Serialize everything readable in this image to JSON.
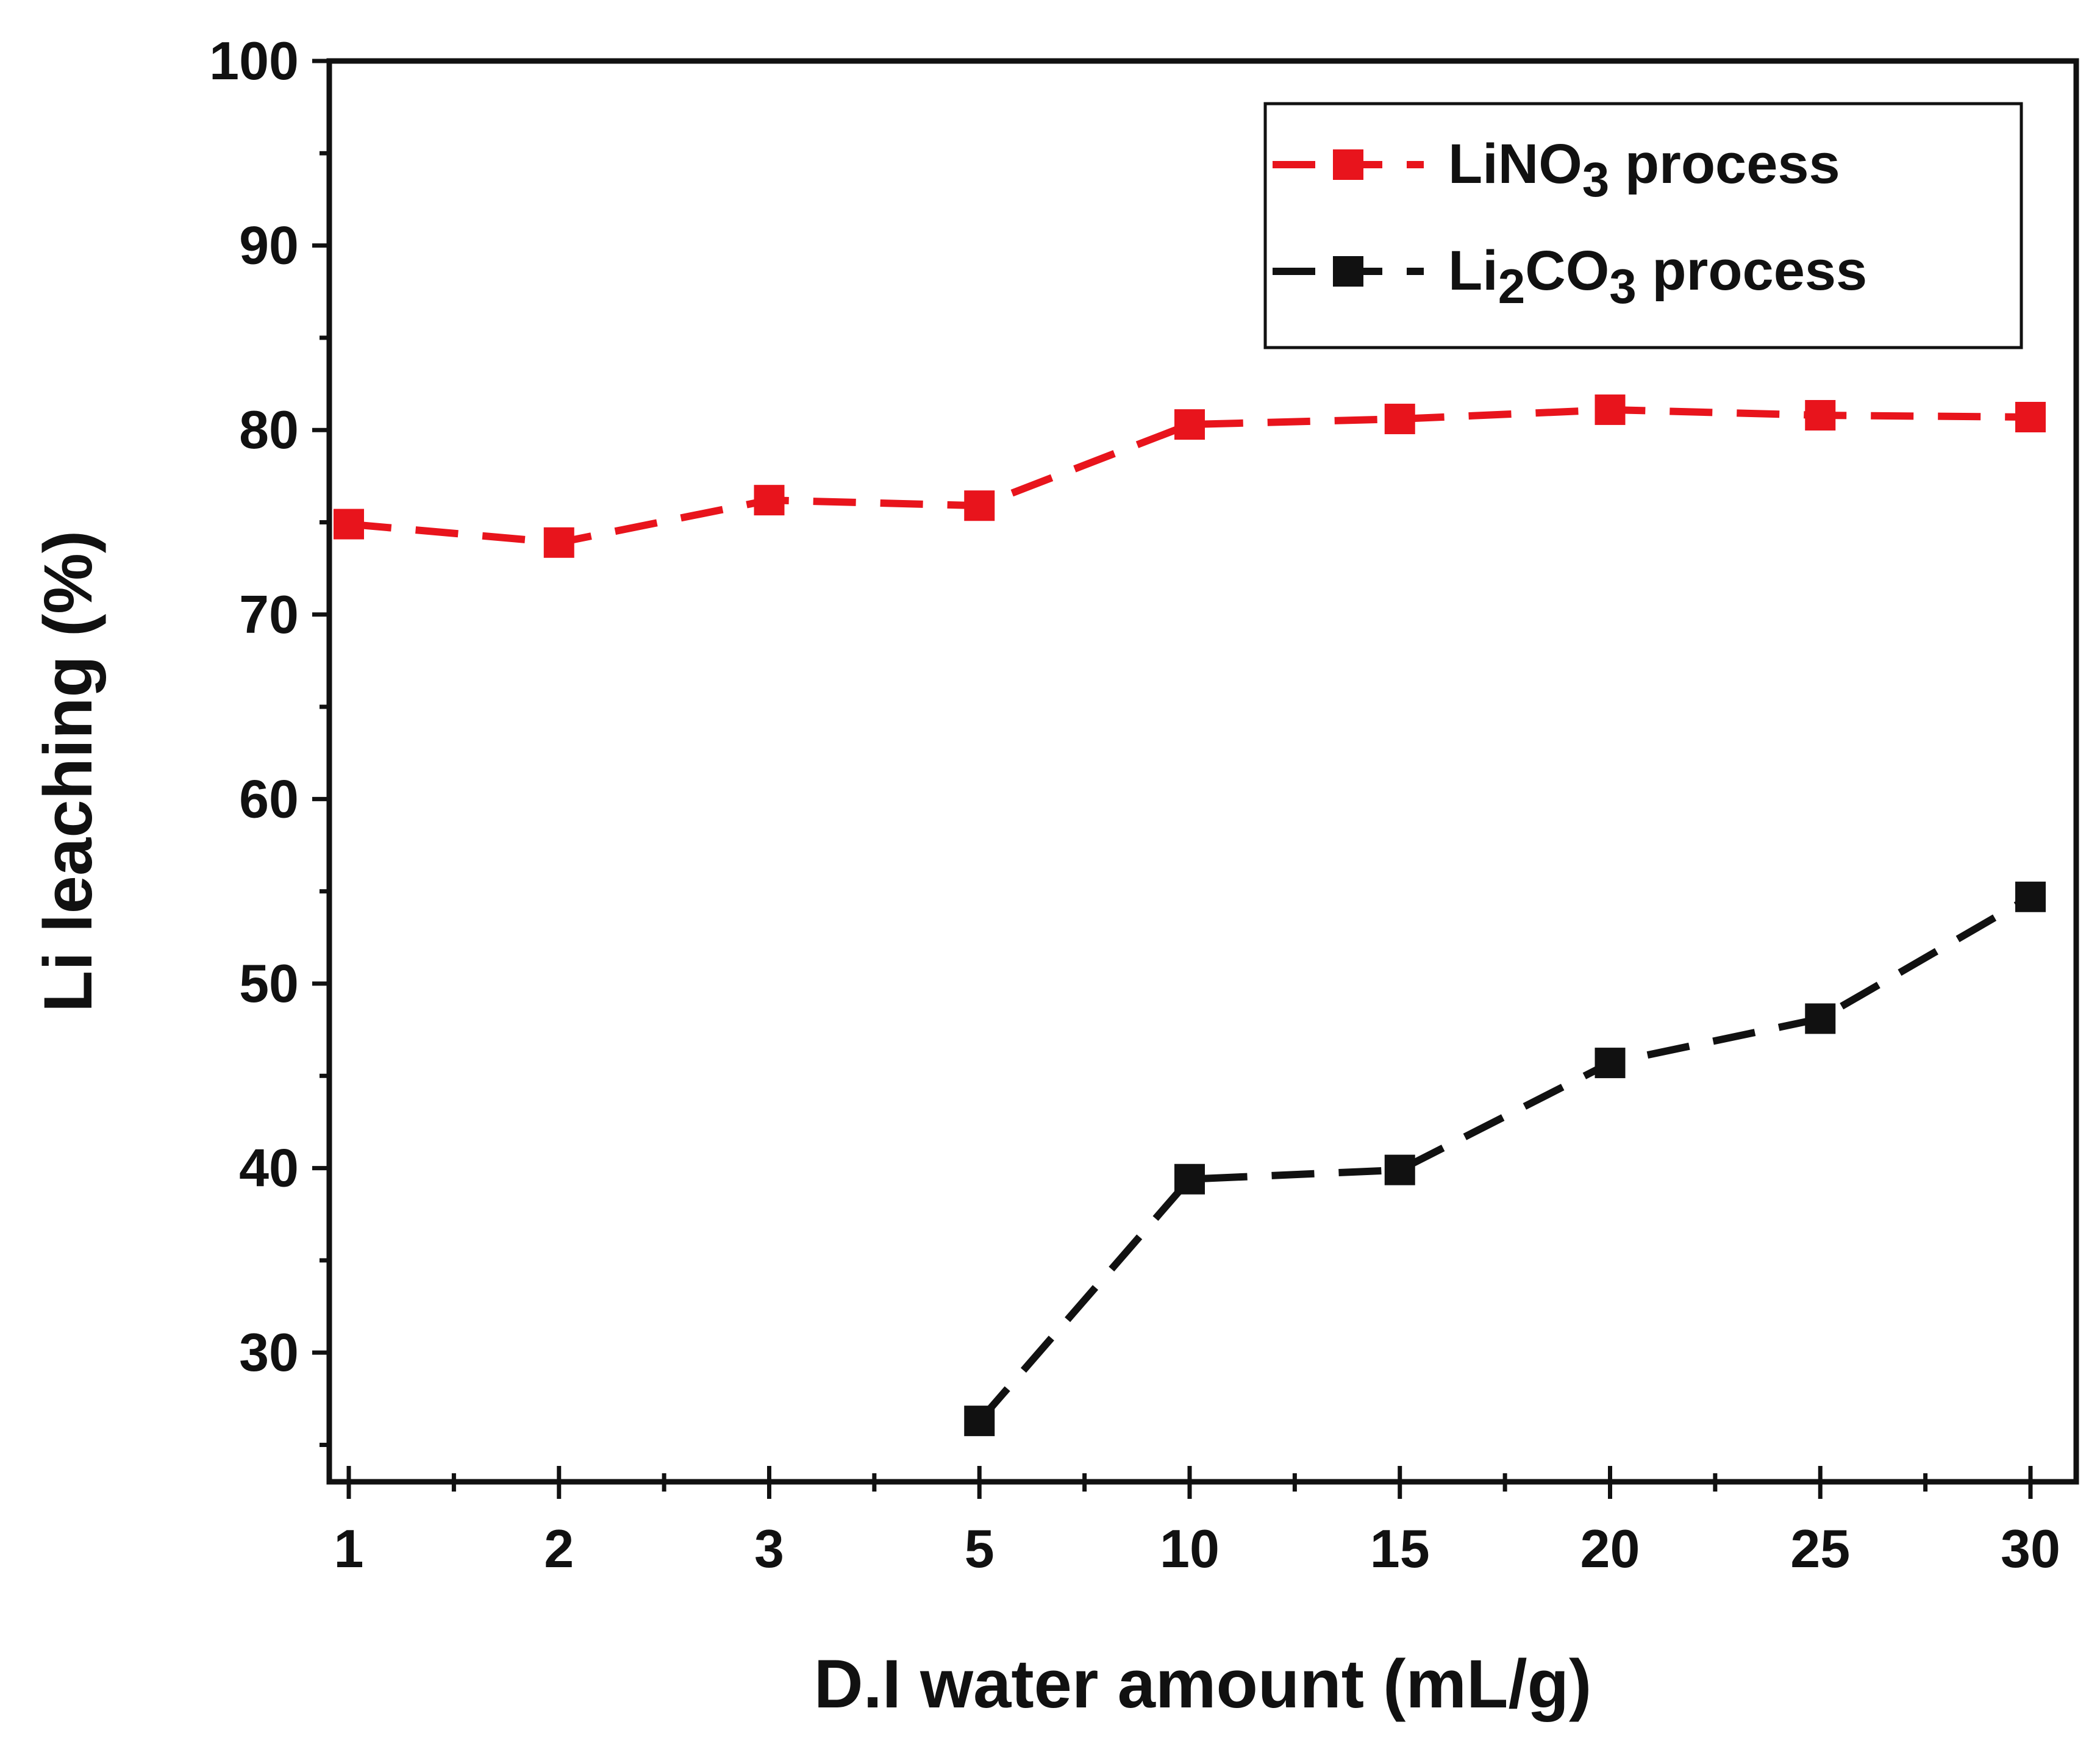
{
  "chart_data": {
    "type": "line",
    "xlabel": "D.I water amount (mL/g)",
    "ylabel": "Li leaching (%)",
    "categories": [
      "1",
      "2",
      "3",
      "5",
      "10",
      "15",
      "20",
      "25",
      "30"
    ],
    "ylim": [
      23,
      100
    ],
    "yticks": [
      30,
      40,
      50,
      60,
      70,
      80,
      90,
      100
    ],
    "grid": false,
    "legend_position": "top-right",
    "series": [
      {
        "name": "LiNO₃ process",
        "legend_base": "LiNO",
        "legend_sub": "3",
        "legend_suffix": " process",
        "color": "#e8141c",
        "marker": "square",
        "line_style": "dashed",
        "values": [
          74.9,
          73.9,
          76.2,
          75.9,
          80.3,
          80.6,
          81.1,
          80.8,
          80.7
        ]
      },
      {
        "name": "Li₂CO₃ process",
        "legend_base": "Li",
        "legend_sub": "2",
        "legend_mid": "CO",
        "legend_sub2": "3",
        "legend_suffix": " process",
        "color": "#111111",
        "marker": "square",
        "line_style": "dashed",
        "values": [
          null,
          null,
          null,
          26.3,
          39.4,
          39.9,
          45.7,
          48.1,
          54.7
        ]
      }
    ]
  }
}
